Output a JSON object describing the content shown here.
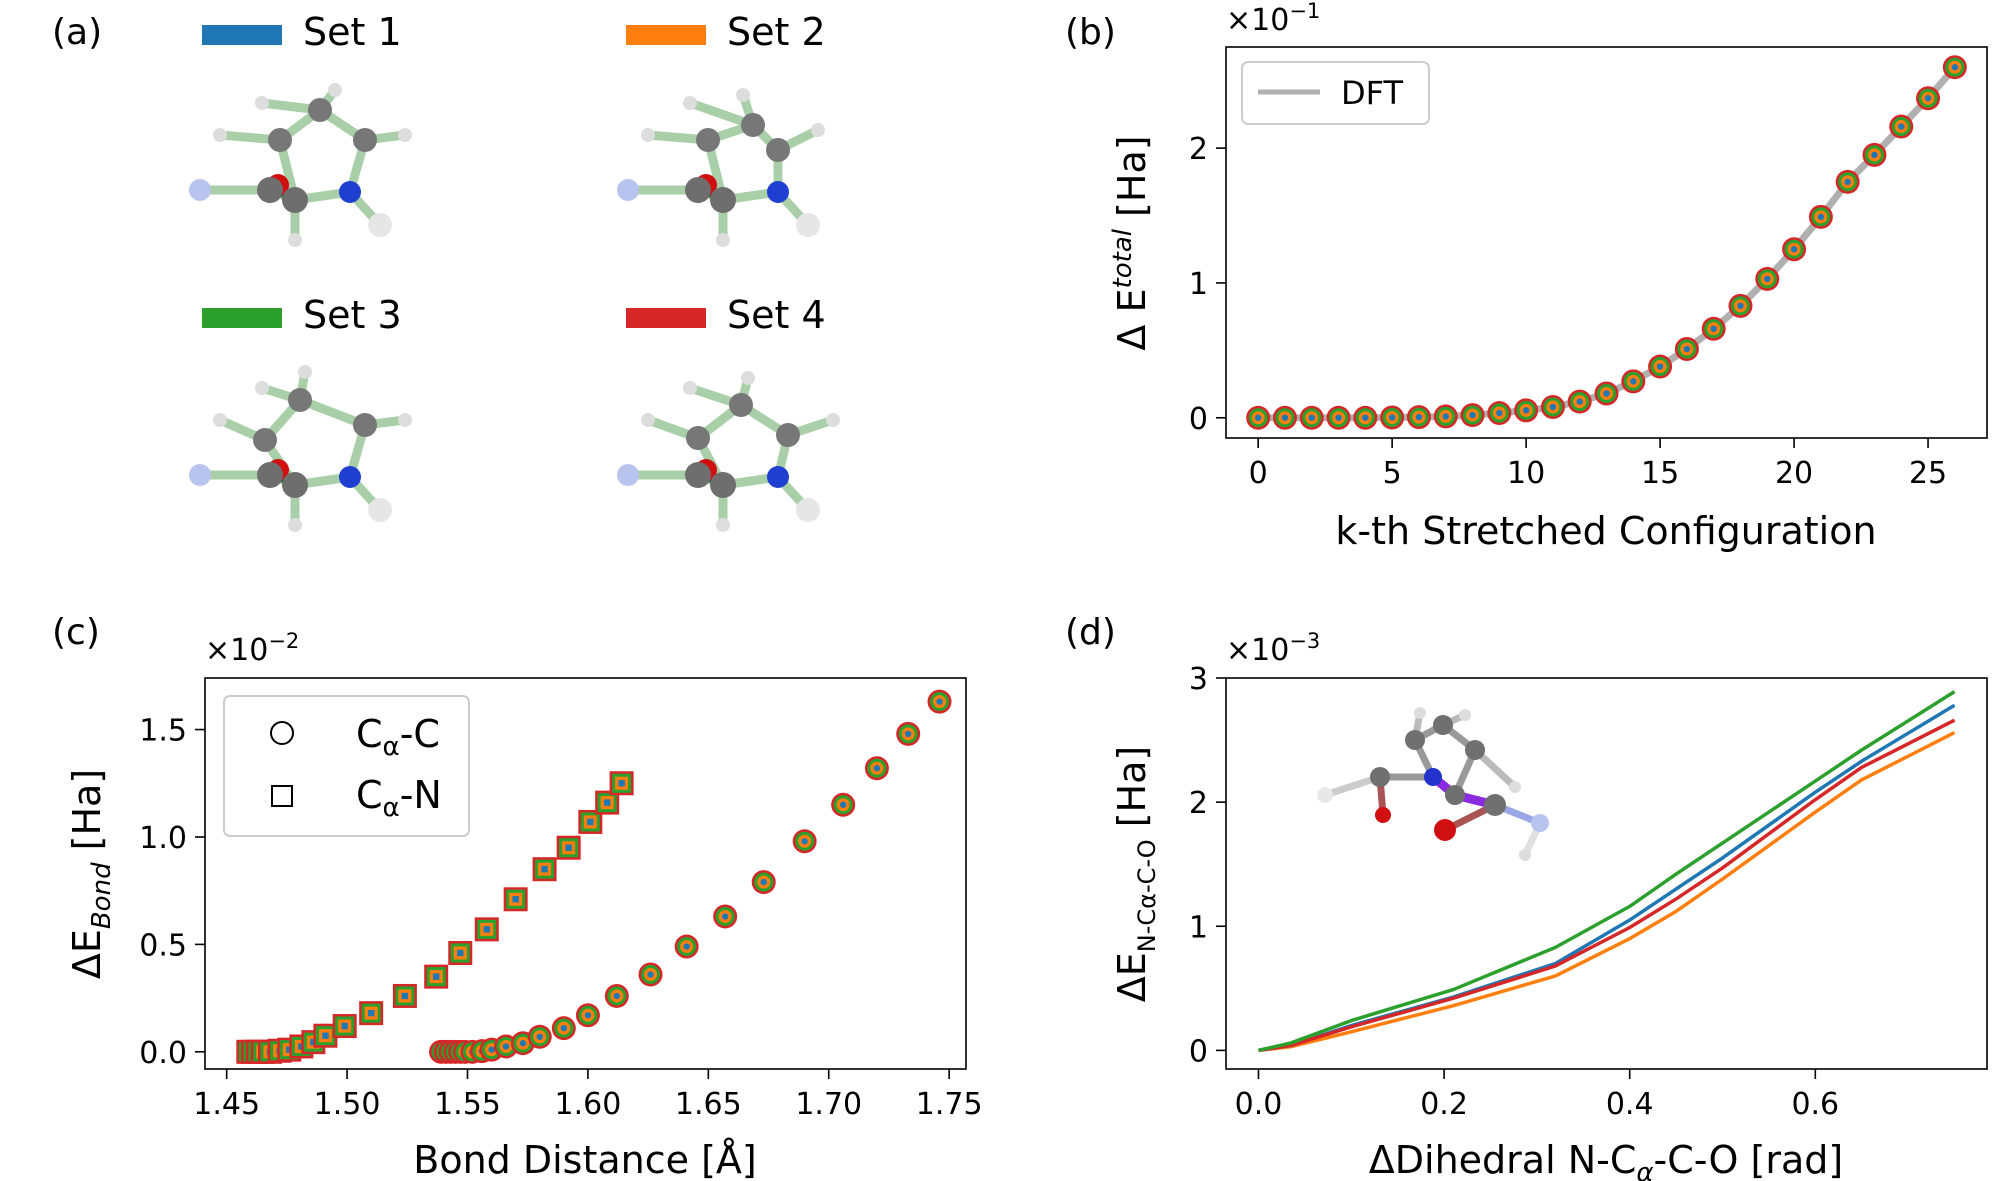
{
  "colors": {
    "set1": "#1f77b4",
    "set2": "#ff7f0e",
    "set3": "#2ca02c",
    "set4": "#d62728",
    "dft": "#b0b0b0"
  },
  "panel_a": {
    "label": "(a)",
    "legend": [
      "Set 1",
      "Set 2",
      "Set 3",
      "Set 4"
    ],
    "molecule_icons": [
      "molecule-icon",
      "molecule-icon",
      "molecule-icon",
      "molecule-icon"
    ]
  },
  "chart_data": [
    {
      "panel": "(b)",
      "type": "scatter",
      "title": "",
      "xlabel": "k-th Stretched Configuration",
      "ylabel_main": "Δ E",
      "ylabel_sup": "total",
      "ylabel_unit": " [Ha]",
      "y_multiplier": "×10",
      "y_multiplier_exp": "−1",
      "xlim": [
        -1.2,
        27.2
      ],
      "ylim": [
        -0.15,
        2.75
      ],
      "xticks": [
        0,
        5,
        10,
        15,
        20,
        25
      ],
      "yticks": [
        0,
        1,
        2
      ],
      "legend": [
        "DFT"
      ],
      "x": [
        0,
        1,
        2,
        3,
        4,
        5,
        6,
        7,
        8,
        9,
        10,
        11,
        12,
        13,
        14,
        15,
        16,
        17,
        18,
        19,
        20,
        21,
        22,
        23,
        24,
        25,
        26
      ],
      "y": [
        0,
        0,
        0,
        0,
        0,
        0.002,
        0.005,
        0.01,
        0.02,
        0.035,
        0.055,
        0.08,
        0.12,
        0.18,
        0.27,
        0.38,
        0.51,
        0.66,
        0.83,
        1.03,
        1.25,
        1.49,
        1.75,
        1.95,
        2.16,
        2.37,
        2.6
      ],
      "series": [
        "Set 1",
        "Set 2",
        "Set 3",
        "Set 4"
      ]
    },
    {
      "panel": "(c)",
      "type": "scatter",
      "title": "",
      "xlabel": "Bond Distance [Å]",
      "ylabel_main": "ΔE",
      "ylabel_sub": "Bond",
      "ylabel_unit": " [Ha]",
      "y_multiplier": "×10",
      "y_multiplier_exp": "−2",
      "xlim": [
        1.441,
        1.757
      ],
      "ylim": [
        -0.08,
        1.74
      ],
      "xticks": [
        1.45,
        1.5,
        1.55,
        1.6,
        1.65,
        1.7,
        1.75
      ],
      "xtick_labels": [
        "1.45",
        "1.50",
        "1.55",
        "1.60",
        "1.65",
        "1.70",
        "1.75"
      ],
      "yticks": [
        0.0,
        0.5,
        1.0,
        1.5
      ],
      "ytick_labels": [
        "0.0",
        "0.5",
        "1.0",
        "1.5"
      ],
      "legend": [
        {
          "marker": "circle",
          "pre": "C",
          "sub": "α",
          "post": "-C"
        },
        {
          "marker": "square",
          "pre": "C",
          "sub": "α",
          "post": "-N"
        }
      ],
      "series": [
        {
          "name": "Cα-C",
          "marker": "circle",
          "x": [
            1.539,
            1.541,
            1.543,
            1.545,
            1.547,
            1.549,
            1.552,
            1.556,
            1.56,
            1.566,
            1.573,
            1.58,
            1.59,
            1.6,
            1.612,
            1.626,
            1.641,
            1.657,
            1.673,
            1.69,
            1.706,
            1.72,
            1.733,
            1.746
          ],
          "y": [
            0,
            0,
            0,
            0,
            0,
            0,
            0,
            0.003,
            0.01,
            0.025,
            0.04,
            0.07,
            0.11,
            0.17,
            0.26,
            0.36,
            0.49,
            0.63,
            0.79,
            0.98,
            1.15,
            1.32,
            1.48,
            1.63
          ]
        },
        {
          "name": "Cα-N",
          "marker": "square",
          "x": [
            1.459,
            1.461,
            1.463,
            1.465,
            1.468,
            1.472,
            1.476,
            1.481,
            1.486,
            1.491,
            1.499,
            1.51,
            1.524,
            1.537,
            1.547,
            1.558,
            1.57,
            1.582,
            1.592,
            1.601,
            1.608,
            1.614
          ],
          "y": [
            0,
            0,
            0,
            0,
            0,
            0.005,
            0.01,
            0.025,
            0.045,
            0.075,
            0.12,
            0.18,
            0.26,
            0.35,
            0.46,
            0.57,
            0.71,
            0.85,
            0.95,
            1.07,
            1.16,
            1.25
          ]
        }
      ]
    },
    {
      "panel": "(d)",
      "type": "line",
      "title": "",
      "xlabel_pre": "ΔDihedral N-C",
      "xlabel_sub": "α",
      "xlabel_post": "-C-O [rad]",
      "ylabel_main": "ΔE",
      "ylabel_sub": "N-Cα-C-O",
      "ylabel_unit": " [Ha]",
      "y_multiplier": "×10",
      "y_multiplier_exp": "−3",
      "xlim": [
        -0.035,
        0.785
      ],
      "ylim": [
        -0.15,
        3.0
      ],
      "xticks": [
        0.0,
        0.2,
        0.4,
        0.6
      ],
      "xtick_labels": [
        "0.0",
        "0.2",
        "0.4",
        "0.6"
      ],
      "yticks": [
        0,
        1,
        2,
        3
      ],
      "x": [
        0,
        0.035,
        0.1,
        0.21,
        0.32,
        0.4,
        0.45,
        0.5,
        0.6,
        0.65,
        0.75
      ],
      "series": [
        {
          "name": "Set 1",
          "values": [
            0,
            0.04,
            0.2,
            0.43,
            0.7,
            1.05,
            1.3,
            1.55,
            2.08,
            2.33,
            2.78
          ]
        },
        {
          "name": "Set 2",
          "values": [
            0,
            0.03,
            0.15,
            0.36,
            0.6,
            0.9,
            1.12,
            1.38,
            1.92,
            2.18,
            2.56
          ]
        },
        {
          "name": "Set 3",
          "values": [
            0,
            0.06,
            0.24,
            0.49,
            0.83,
            1.16,
            1.42,
            1.67,
            2.17,
            2.42,
            2.89
          ]
        },
        {
          "name": "Set 4",
          "values": [
            0,
            0.04,
            0.19,
            0.42,
            0.68,
            0.99,
            1.22,
            1.47,
            2.02,
            2.28,
            2.66
          ]
        }
      ]
    }
  ]
}
